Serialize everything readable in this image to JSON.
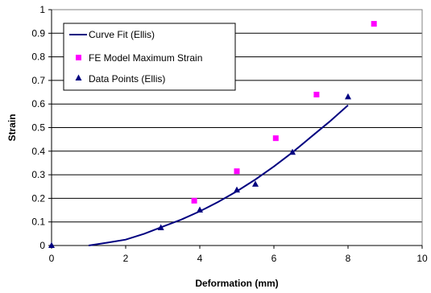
{
  "chart_data": {
    "type": "scatter",
    "title": "",
    "xlabel": "Deformation (mm)",
    "ylabel": "Strain",
    "xlim": [
      0,
      10
    ],
    "ylim": [
      0,
      1
    ],
    "x_ticks": [
      "0",
      "2",
      "4",
      "6",
      "8",
      "10"
    ],
    "y_ticks": [
      "0",
      "0.1",
      "0.2",
      "0.3",
      "0.4",
      "0.5",
      "0.6",
      "0.7",
      "0.8",
      "0.9",
      "1"
    ],
    "grid": "horizontal",
    "legend_position": "top-left",
    "series": [
      {
        "name": "Curve Fit (Ellis)",
        "kind": "line",
        "color": "#000080",
        "x": [
          1.0,
          1.5,
          2.0,
          2.5,
          3.0,
          3.5,
          4.0,
          4.5,
          5.0,
          5.5,
          6.0,
          6.5,
          7.0,
          7.5,
          8.0
        ],
        "y": [
          0.0,
          0.012,
          0.025,
          0.05,
          0.08,
          0.11,
          0.145,
          0.185,
          0.23,
          0.28,
          0.335,
          0.395,
          0.46,
          0.525,
          0.595
        ]
      },
      {
        "name": "FE Model Maximum Strain",
        "kind": "marker-square",
        "color": "#ff00ff",
        "x": [
          3.85,
          5.0,
          6.05,
          7.15,
          8.7
        ],
        "y": [
          0.19,
          0.315,
          0.455,
          0.64,
          0.94
        ]
      },
      {
        "name": "Data Points (Ellis)",
        "kind": "marker-triangle",
        "color": "#000080",
        "x": [
          0.0,
          2.95,
          4.0,
          5.0,
          5.5,
          6.5,
          8.0
        ],
        "y": [
          0.0,
          0.075,
          0.15,
          0.235,
          0.26,
          0.395,
          0.63
        ]
      }
    ]
  }
}
